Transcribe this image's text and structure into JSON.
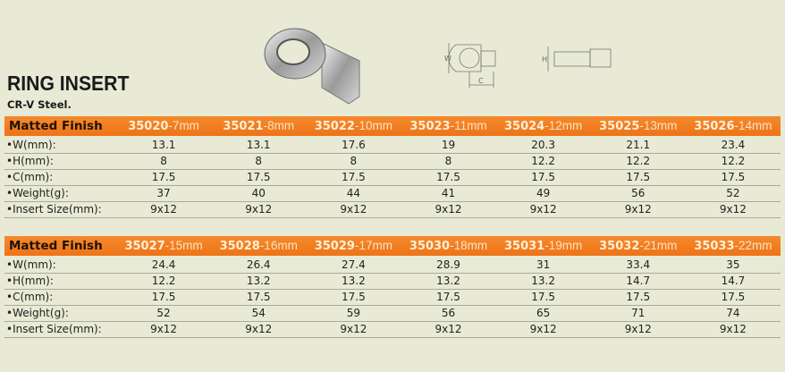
{
  "title": "RING INSERT",
  "subtitle": "CR-V Steel.",
  "drawing_labels": {
    "w": "W",
    "h": "H",
    "c": "C"
  },
  "colors": {
    "header_bar": "#f07a1e",
    "background": "#e8ead5"
  },
  "row_labels": [
    "•W(mm):",
    "•H(mm):",
    "•C(mm):",
    "•Weight(g):",
    "•Insert Size(mm):"
  ],
  "tables": [
    {
      "finish": "Matted Finish",
      "columns": [
        {
          "code": "35020",
          "size": "-7mm"
        },
        {
          "code": "35021",
          "size": "-8mm"
        },
        {
          "code": "35022",
          "size": "-10mm"
        },
        {
          "code": "35023",
          "size": "-11mm"
        },
        {
          "code": "35024",
          "size": "-12mm"
        },
        {
          "code": "35025",
          "size": "-13mm"
        },
        {
          "code": "35026",
          "size": "-14mm"
        }
      ],
      "rows": [
        [
          "13.1",
          "13.1",
          "17.6",
          "19",
          "20.3",
          "21.1",
          "23.4"
        ],
        [
          "8",
          "8",
          "8",
          "8",
          "12.2",
          "12.2",
          "12.2"
        ],
        [
          "17.5",
          "17.5",
          "17.5",
          "17.5",
          "17.5",
          "17.5",
          "17.5"
        ],
        [
          "37",
          "40",
          "44",
          "41",
          "49",
          "56",
          "52"
        ],
        [
          "9x12",
          "9x12",
          "9x12",
          "9x12",
          "9x12",
          "9x12",
          "9x12"
        ]
      ]
    },
    {
      "finish": "Matted Finish",
      "columns": [
        {
          "code": "35027",
          "size": "-15mm"
        },
        {
          "code": "35028",
          "size": "-16mm"
        },
        {
          "code": "35029",
          "size": "-17mm"
        },
        {
          "code": "35030",
          "size": "-18mm"
        },
        {
          "code": "35031",
          "size": "-19mm"
        },
        {
          "code": "35032",
          "size": "-21mm"
        },
        {
          "code": "35033",
          "size": "-22mm"
        }
      ],
      "rows": [
        [
          "24.4",
          "26.4",
          "27.4",
          "28.9",
          "31",
          "33.4",
          "35"
        ],
        [
          "12.2",
          "13.2",
          "13.2",
          "13.2",
          "13.2",
          "14.7",
          "14.7"
        ],
        [
          "17.5",
          "17.5",
          "17.5",
          "17.5",
          "17.5",
          "17.5",
          "17.5"
        ],
        [
          "52",
          "54",
          "59",
          "56",
          "65",
          "71",
          "74"
        ],
        [
          "9x12",
          "9x12",
          "9x12",
          "9x12",
          "9x12",
          "9x12",
          "9x12"
        ]
      ]
    }
  ]
}
